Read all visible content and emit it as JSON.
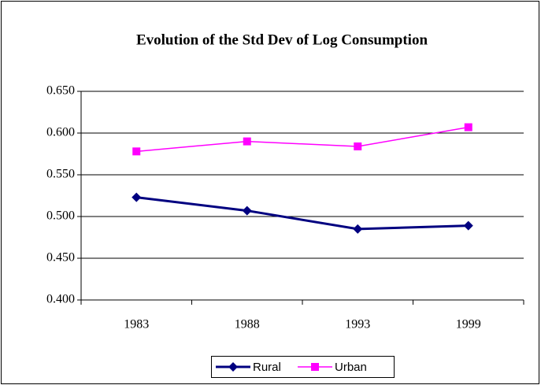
{
  "chart_data": {
    "type": "line",
    "title": "Evolution of the Std Dev of Log Consumption",
    "categories": [
      "1983",
      "1988",
      "1993",
      "1999"
    ],
    "series": [
      {
        "name": "Rural",
        "color": "#000080",
        "marker": "diamond",
        "values": [
          0.523,
          0.507,
          0.485,
          0.489
        ]
      },
      {
        "name": "Urban",
        "color": "#ff00ff",
        "marker": "square",
        "values": [
          0.578,
          0.59,
          0.584,
          0.607
        ]
      }
    ],
    "ylim": [
      0.4,
      0.65
    ],
    "yticks": [
      {
        "value": 0.4,
        "label": "0.400"
      },
      {
        "value": 0.45,
        "label": "0.450"
      },
      {
        "value": 0.5,
        "label": "0.500"
      },
      {
        "value": 0.55,
        "label": "0.550"
      },
      {
        "value": 0.6,
        "label": "0.600"
      },
      {
        "value": 0.65,
        "label": "0.650"
      }
    ],
    "grid": true,
    "legend": "bottom"
  }
}
